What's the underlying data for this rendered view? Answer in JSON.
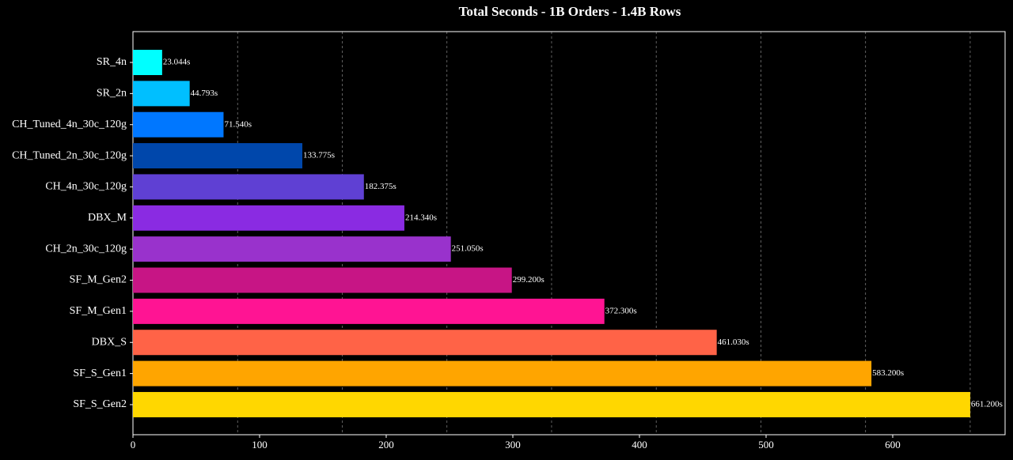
{
  "chart_data": {
    "type": "barh",
    "title": "Total Seconds - 1B Orders - 1.4B Rows",
    "categories": [
      "SR_4n",
      "SR_2n",
      "CH_Tuned_4n_30c_120g",
      "CH_Tuned_2n_30c_120g",
      "CH_4n_30c_120g",
      "DBX_M",
      "CH_2n_30c_120g",
      "SF_M_Gen2",
      "SF_M_Gen1",
      "DBX_S",
      "SF_S_Gen1",
      "SF_S_Gen2"
    ],
    "values": [
      23.044,
      44.793,
      71.54,
      133.775,
      182.375,
      214.34,
      251.05,
      299.2,
      372.3,
      461.03,
      583.2,
      661.2
    ],
    "value_labels": [
      "23.044s",
      "44.793s",
      "71.540s",
      "133.775s",
      "182.375s",
      "214.340s",
      "251.050s",
      "299.200s",
      "372.300s",
      "461.030s",
      "583.200s",
      "661.200s"
    ],
    "colors": [
      "#00ffff",
      "#00bfff",
      "#0077ff",
      "#0047ab",
      "#5f40d3",
      "#8a2be2",
      "#9932cc",
      "#c71585",
      "#ff1493",
      "#ff6347",
      "#ffa500",
      "#ffd700"
    ],
    "xlim": [
      0,
      688.75
    ],
    "xticks": [
      0,
      100,
      200,
      300,
      400,
      500,
      600
    ],
    "xgrid": [
      82.65,
      165.3,
      247.95,
      330.6,
      413.25,
      495.9,
      578.55,
      661.2
    ]
  }
}
